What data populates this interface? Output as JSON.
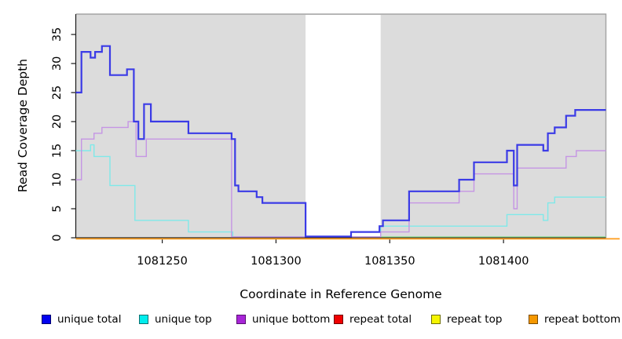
{
  "figure": {
    "x_axis_title": "Coordinate in Reference Genome",
    "y_axis_title": "Read Coverage Depth"
  },
  "chart_data": {
    "type": "line",
    "subtype": "step-after",
    "title": "",
    "xlabel": "Coordinate in Reference Genome",
    "ylabel": "Read Coverage Depth",
    "x_range": [
      1081212,
      1081445
    ],
    "y_range": [
      0,
      38.5
    ],
    "x_ticks": [
      "1081250",
      "1081300",
      "1081350",
      "1081400"
    ],
    "x_tick_values": [
      1081250,
      1081300,
      1081350,
      1081400
    ],
    "y_ticks": [
      "0",
      "5",
      "10",
      "15",
      "20",
      "25",
      "30",
      "35"
    ],
    "y_tick_values": [
      0,
      5,
      10,
      15,
      20,
      25,
      30,
      35
    ],
    "grid": false,
    "legend_position": "bottom",
    "background": {
      "figure": "#ffffff",
      "panel": "#dcdcdc",
      "panel_border": "#a3a3a3",
      "axis_color": "#1a1a1a",
      "highlight_band": {
        "from": 1081313,
        "to": 1081346,
        "color": "#ffffff"
      }
    },
    "series": [
      {
        "name": "repeat total",
        "line_color": "#e03030",
        "width": 1.3,
        "zero_shift": 1.3,
        "steps": [
          [
            1081212,
            0
          ]
        ]
      },
      {
        "name": "repeat top",
        "line_color": "#97dc97",
        "width": 1.3,
        "zero_shift": -1.2,
        "steps": [
          [
            1081281,
            0
          ]
        ]
      },
      {
        "name": "unique top",
        "line_color": "#7fe9e9",
        "width": 1.4,
        "zero_shift": -1.2,
        "steps": [
          [
            1081212,
            15
          ],
          [
            1081218.5,
            16
          ],
          [
            1081220,
            14
          ],
          [
            1081227,
            9
          ],
          [
            1081238,
            3
          ],
          [
            1081261.5,
            1
          ],
          [
            1081281,
            0
          ],
          [
            1081346,
            2
          ],
          [
            1081401.5,
            4
          ],
          [
            1081417.5,
            3
          ],
          [
            1081419.5,
            6
          ],
          [
            1081422.5,
            7
          ]
        ]
      },
      {
        "name": "unique bottom",
        "line_color": "#c595e4",
        "width": 1.4,
        "zero_shift": -1.2,
        "steps": [
          [
            1081212,
            10
          ],
          [
            1081214.5,
            17
          ],
          [
            1081220,
            18
          ],
          [
            1081223.5,
            19
          ],
          [
            1081235,
            20
          ],
          [
            1081238.5,
            14
          ],
          [
            1081243,
            17
          ],
          [
            1081280.5,
            0
          ],
          [
            1081346,
            1
          ],
          [
            1081358.5,
            6
          ],
          [
            1081380.5,
            8
          ],
          [
            1081387,
            11
          ],
          [
            1081404.5,
            5
          ],
          [
            1081406,
            12
          ],
          [
            1081427.5,
            14
          ],
          [
            1081432,
            15
          ]
        ]
      },
      {
        "name": "unique total",
        "line_color": "#3b3be6",
        "width": 2.2,
        "zero_shift": -1.6,
        "steps": [
          [
            1081212,
            25
          ],
          [
            1081214.5,
            32
          ],
          [
            1081218.5,
            31
          ],
          [
            1081220.5,
            32
          ],
          [
            1081223.5,
            33
          ],
          [
            1081227,
            28
          ],
          [
            1081234.5,
            29
          ],
          [
            1081237.5,
            20
          ],
          [
            1081239.5,
            17
          ],
          [
            1081242,
            23
          ],
          [
            1081245,
            20
          ],
          [
            1081261.5,
            18
          ],
          [
            1081280.5,
            17
          ],
          [
            1081282,
            9
          ],
          [
            1081283.5,
            8
          ],
          [
            1081291.5,
            7
          ],
          [
            1081294,
            6
          ],
          [
            1081313,
            0
          ],
          [
            1081333,
            1
          ],
          [
            1081345.5,
            2
          ],
          [
            1081347,
            3
          ],
          [
            1081358.5,
            8
          ],
          [
            1081380.5,
            10
          ],
          [
            1081387,
            13
          ],
          [
            1081401.5,
            15
          ],
          [
            1081404.5,
            9
          ],
          [
            1081406,
            16
          ],
          [
            1081417.5,
            15
          ],
          [
            1081419.5,
            18
          ],
          [
            1081422.5,
            19
          ],
          [
            1081427.5,
            21
          ],
          [
            1081431.5,
            22
          ]
        ]
      },
      {
        "name": "repeat bottom",
        "line_color": "#ffa127",
        "width": 1.8,
        "zero_shift": 1.3,
        "extend_beyond_panel": true,
        "steps": [
          [
            1081212,
            0
          ]
        ]
      }
    ],
    "legend": [
      {
        "label": "unique total",
        "fill": "#0202f0",
        "border": "#00006e"
      },
      {
        "label": "unique top",
        "fill": "#00eded",
        "border": "#0e7070"
      },
      {
        "label": "unique bottom",
        "fill": "#a825d8",
        "border": "#581070"
      },
      {
        "label": "repeat total",
        "fill": "#f00000",
        "border": "#700000"
      },
      {
        "label": "repeat top",
        "fill": "#f5f500",
        "border": "#6e6e00"
      },
      {
        "label": "repeat bottom",
        "fill": "#f59800",
        "border": "#7a4b00"
      }
    ]
  }
}
